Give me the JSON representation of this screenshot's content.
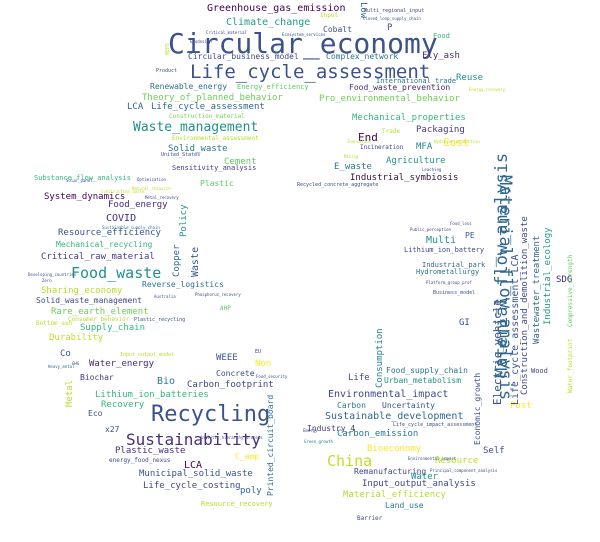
{
  "words": [
    {
      "text": "Circular_economy",
      "color": "#3b528b"
    },
    {
      "text": "Life_cycle_assessment",
      "color": "#3b528b"
    },
    {
      "text": "Recycling",
      "color": "#3b528b"
    },
    {
      "text": "Sustainability",
      "color": "#472d7b"
    },
    {
      "text": "Material_flow_analysis",
      "color": "#31688e"
    },
    {
      "text": "Food_waste",
      "color": "#21918c"
    },
    {
      "text": "Waste_management",
      "color": "#21918c"
    },
    {
      "text": "China",
      "color": "#bddf26"
    },
    {
      "text": "Greenhouse_gas_emission",
      "color": "#440154"
    },
    {
      "text": "Climate_change",
      "color": "#1f9e89"
    },
    {
      "text": "Circular_business_model",
      "color": "#3e4989"
    },
    {
      "text": "Complex_network",
      "color": "#2c728e"
    },
    {
      "text": "Fly_ash",
      "color": "#482878"
    },
    {
      "text": "Cobalt",
      "color": "#3b528b"
    },
    {
      "text": "Food",
      "color": "#35b779"
    },
    {
      "text": "Renewable_energy",
      "color": "#2c728e"
    },
    {
      "text": "Energy_efficiency",
      "color": "#5ec962"
    },
    {
      "text": "Reuse",
      "color": "#21918c"
    },
    {
      "text": "Food_waste_prevention",
      "color": "#482878"
    },
    {
      "text": "Theory_of_planned_behavior",
      "color": "#6ece58"
    },
    {
      "text": "Pro_environmental_behavior",
      "color": "#6ece58"
    },
    {
      "text": "LCA",
      "color": "#31688e"
    },
    {
      "text": "Life_cycle_assessment",
      "color": "#31688e"
    },
    {
      "text": "Mechanical_properties",
      "color": "#35b779"
    },
    {
      "text": "Construction_material",
      "color": "#7ad151"
    },
    {
      "text": "Packaging",
      "color": "#443983"
    },
    {
      "text": "Environmental_assessment",
      "color": "#b5de2b"
    },
    {
      "text": "End",
      "color": "#440154"
    },
    {
      "text": "Cost",
      "color": "#fde725"
    },
    {
      "text": "Solid_waste",
      "color": "#2a788e"
    },
    {
      "text": "MFA",
      "color": "#26828e"
    },
    {
      "text": "Incineration",
      "color": "#3e4989"
    },
    {
      "text": "Cement",
      "color": "#5ec962"
    },
    {
      "text": "E_waste",
      "color": "#2a788e"
    },
    {
      "text": "Agriculture",
      "color": "#21918c"
    },
    {
      "text": "Sensitivity_analysis",
      "color": "#443983"
    },
    {
      "text": "Industrial_symbiosis",
      "color": "#30123b"
    },
    {
      "text": "Plastic",
      "color": "#5ec962"
    },
    {
      "text": "Substance_flow_analysis",
      "color": "#35b779"
    },
    {
      "text": "Recycled_concrete_aggregate",
      "color": "#3e4989"
    },
    {
      "text": "System_dynamics",
      "color": "#440154"
    },
    {
      "text": "Food_energy",
      "color": "#482878"
    },
    {
      "text": "COVID",
      "color": "#472d7b"
    },
    {
      "text": "Resource_efficiency",
      "color": "#3b528b"
    },
    {
      "text": "Mechanical_recycling",
      "color": "#35b779"
    },
    {
      "text": "Critical_raw_material",
      "color": "#443983"
    },
    {
      "text": "Reverse_logistics",
      "color": "#2c728e"
    },
    {
      "text": "Sharing_economy",
      "color": "#b5de2b"
    },
    {
      "text": "Solid_waste_management",
      "color": "#3e4989"
    },
    {
      "text": "Rare_earth_element",
      "color": "#6ece58"
    },
    {
      "text": "Supply_chain",
      "color": "#35b779"
    },
    {
      "text": "Durability",
      "color": "#bddf26"
    },
    {
      "text": "Water_energy",
      "color": "#482878"
    },
    {
      "text": "Co",
      "color": "#3b528b"
    },
    {
      "text": "Biochar",
      "color": "#443983"
    },
    {
      "text": "Bio",
      "color": "#2a788e"
    },
    {
      "text": "Carbon_footprint",
      "color": "#3e4989"
    },
    {
      "text": "WEEE",
      "color": "#3b528b"
    },
    {
      "text": "Non",
      "color": "#fde725"
    },
    {
      "text": "Lithium_ion_batteries",
      "color": "#35b779"
    },
    {
      "text": "Recovery",
      "color": "#35b779"
    },
    {
      "text": "Concrete",
      "color": "#3e4989"
    },
    {
      "text": "Plastic_waste",
      "color": "#472d7b"
    },
    {
      "text": "LCA",
      "color": "#440154"
    },
    {
      "text": "Municipal_solid_waste",
      "color": "#3b528b"
    },
    {
      "text": "Life_cycle_costing",
      "color": "#3e4989"
    },
    {
      "text": "poly",
      "color": "#31688e"
    },
    {
      "text": "Resource_recovery",
      "color": "#b5de2b"
    },
    {
      "text": "Environmental_impact",
      "color": "#3e4989"
    },
    {
      "text": "Sustainable_development",
      "color": "#31688e"
    },
    {
      "text": "Carbon_emission",
      "color": "#2a788e"
    },
    {
      "text": "Bioeconomy",
      "color": "#fde725"
    },
    {
      "text": "Resource",
      "color": "#bddf26"
    },
    {
      "text": "Remanufacturing",
      "color": "#3e4989"
    },
    {
      "text": "Water",
      "color": "#21918c"
    },
    {
      "text": "Input_output_analysis",
      "color": "#3e4989"
    },
    {
      "text": "Material_efficiency",
      "color": "#b5de2b"
    },
    {
      "text": "Land_use",
      "color": "#2a788e"
    },
    {
      "text": "Industry_4",
      "color": "#443983"
    },
    {
      "text": "Self",
      "color": "#3e4989"
    },
    {
      "text": "Post",
      "color": "#fde725"
    },
    {
      "text": "Uncertainty",
      "color": "#3b528b"
    },
    {
      "text": "Carbon",
      "color": "#2a788e"
    },
    {
      "text": "Life",
      "color": "#3e4989"
    },
    {
      "text": "Food_supply_chain",
      "color": "#2c728e"
    },
    {
      "text": "Urban_metabolism",
      "color": "#21918c"
    },
    {
      "text": "Multi",
      "color": "#21918c"
    },
    {
      "text": "PE",
      "color": "#3b528b"
    },
    {
      "text": "Lithium_ion_battery",
      "color": "#3e4989"
    },
    {
      "text": "Industrial_park",
      "color": "#31688e"
    },
    {
      "text": "Hydrometallurgy",
      "color": "#2c728e"
    },
    {
      "text": "GI",
      "color": "#3b528b"
    },
    {
      "text": "SDG",
      "color": "#482878"
    },
    {
      "text": "Wood",
      "color": "#3e4989"
    },
    {
      "text": "Electric_vehicle",
      "color": "#3b528b"
    },
    {
      "text": "Material_flow_analysis",
      "color": "#31688e"
    },
    {
      "text": "Life_cycle_assessment_LCA",
      "color": "#3b528b"
    },
    {
      "text": "Construction_and_demolition_waste",
      "color": "#3e4989"
    },
    {
      "text": "Wastewater_treatment",
      "color": "#31688e"
    },
    {
      "text": "Industrial_ecology",
      "color": "#1f9e89"
    },
    {
      "text": "Consumption",
      "color": "#26828e"
    },
    {
      "text": "Economic_growth",
      "color": "#3b528b"
    },
    {
      "text": "Policy",
      "color": "#21918c"
    },
    {
      "text": "Waste",
      "color": "#3b528b"
    },
    {
      "text": "Copper",
      "color": "#31688e"
    },
    {
      "text": "Metal",
      "color": "#b5de2b"
    },
    {
      "text": "Printed_circuit_board",
      "color": "#2c728e"
    },
    {
      "text": "Low",
      "color": "#31688e"
    },
    {
      "text": "P",
      "color": "#3b528b"
    },
    {
      "text": "Eco",
      "color": "#3e4989"
    },
    {
      "text": "x27",
      "color": "#3b528b"
    },
    {
      "text": "energy_food_nexus",
      "color": "#3e4989"
    },
    {
      "text": "C_amp",
      "color": "#fde725"
    },
    {
      "text": "Trade",
      "color": "#b5de2b"
    },
    {
      "text": "International_trade",
      "color": "#2c728e"
    },
    {
      "text": "Multi_regional_input",
      "color": "#3e4989"
    },
    {
      "text": "Closed_loop_supply_chain",
      "color": "#3b528b"
    },
    {
      "text": "Input",
      "color": "#b5de2b"
    },
    {
      "text": "Consumer_behavior",
      "color": "#b5de2b"
    },
    {
      "text": "Bottom_ash",
      "color": "#bddf26"
    },
    {
      "text": "Business_model",
      "color": "#3b528b"
    },
    {
      "text": "AHP",
      "color": "#5ec962"
    },
    {
      "text": "Plastic_recycling",
      "color": "#3b528b"
    },
    {
      "text": "Input_output_model",
      "color": "#b5de2b"
    },
    {
      "text": "Sustainable_supply_chain",
      "color": "#2a788e"
    },
    {
      "text": "Barrier",
      "color": "#3e4989"
    },
    {
      "text": "Optimization",
      "color": "#3b528b"
    },
    {
      "text": "Metal_recovery",
      "color": "#3e4989"
    },
    {
      "text": "Product",
      "color": "#3b528b"
    },
    {
      "text": "Critical_material",
      "color": "#3e4989"
    },
    {
      "text": "Ecosystem_services",
      "color": "#3b528b"
    },
    {
      "text": "United_States",
      "color": "#3e4989"
    },
    {
      "text": "Life_cycle_impact_assessment",
      "color": "#3e4989"
    },
    {
      "text": "Compressive_strength",
      "color": "#5ec962"
    },
    {
      "text": "Water_footprint",
      "color": "#bddf26"
    },
    {
      "text": "Natural_resource",
      "color": "#b5de2b"
    },
    {
      "text": "Heavy_metal",
      "color": "#2c728e"
    },
    {
      "text": "Food_loss",
      "color": "#3e4989"
    },
    {
      "text": "Emergy",
      "color": "#3b528b"
    },
    {
      "text": "Public_perception",
      "color": "#3e4989"
    },
    {
      "text": "Platform_group_prof",
      "color": "#3e4989"
    },
    {
      "text": "Australia",
      "color": "#3b528b"
    },
    {
      "text": "GHG",
      "color": "#3e4989"
    },
    {
      "text": "EU",
      "color": "#3e4989"
    },
    {
      "text": "Developing_countries",
      "color": "#3b528b"
    },
    {
      "text": "Zero",
      "color": "#3e4989"
    },
    {
      "text": "Green_growth",
      "color": "#2a788e"
    },
    {
      "text": "Phosphorus_recovery",
      "color": "#3e4989"
    },
    {
      "text": "Solar_panel",
      "color": "#3b528b"
    },
    {
      "text": "Leaching",
      "color": "#3e4989"
    },
    {
      "text": "Ecodesign",
      "color": "#3e4989"
    },
    {
      "text": "Hydrogen_production",
      "color": "#b5de2b"
    },
    {
      "text": "Food_security",
      "color": "#3e4989"
    },
    {
      "text": "Innovation",
      "color": "#b5de2b"
    },
    {
      "text": "Energy_recovery",
      "color": "#b5de2b"
    },
    {
      "text": "Construction_waste",
      "color": "#bddf26"
    },
    {
      "text": "Environmental_impact",
      "color": "#3b528b"
    },
    {
      "text": "Analytic_hierarchy_process",
      "color": "#3e4989"
    },
    {
      "text": "Principal_component_analysis",
      "color": "#3e4989"
    },
    {
      "text": "Mining",
      "color": "#b5de2b"
    },
    {
      "text": "NEPS",
      "color": "#bddf26"
    }
  ]
}
